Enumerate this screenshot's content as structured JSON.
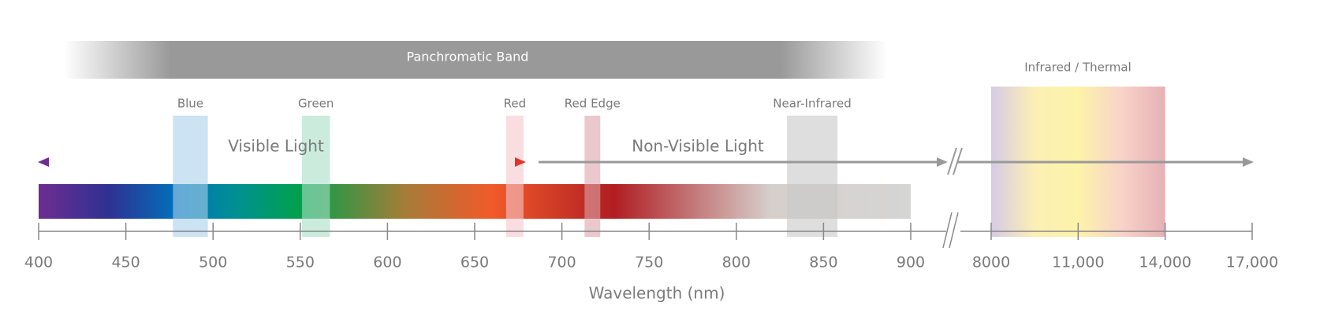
{
  "axis_label": "Wavelength (nm)",
  "ticks": [
    400,
    450,
    500,
    550,
    600,
    650,
    700,
    750,
    800,
    850,
    900
  ],
  "ir_ticks": [
    8000,
    {
      "value": 11000,
      "label": "11,000"
    },
    {
      "value": 14000,
      "label": "14,000"
    },
    {
      "value": 17000,
      "label": "17,000"
    }
  ],
  "panchromatic": {
    "label": "Panchromatic Band"
  },
  "visible": {
    "label": "Visible Light"
  },
  "non_visible": {
    "label": "Non-Visible Light"
  },
  "bands": [
    {
      "label": "Blue",
      "range": [
        477,
        497
      ],
      "color": "#a9d0ea"
    },
    {
      "label": "Green",
      "range": [
        551,
        567
      ],
      "color": "#a9dfc6"
    },
    {
      "label": "Red",
      "range": [
        668,
        678
      ],
      "color": "#f7c6cc"
    },
    {
      "label": "Red Edge",
      "range": [
        713,
        722
      ],
      "color": "#dca4aa"
    },
    {
      "label": "Near-Infrared",
      "range": [
        829,
        858
      ],
      "color": "#c8c8c8"
    }
  ],
  "infrared": {
    "label": "Infrared / Thermal",
    "range": [
      8000,
      14000
    ]
  }
}
